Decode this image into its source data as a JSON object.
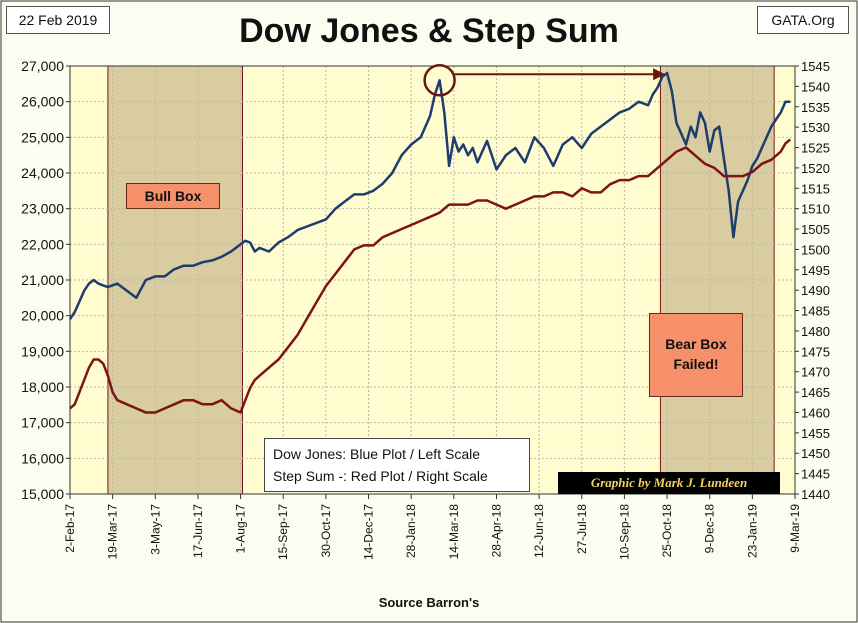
{
  "header": {
    "date": "22 Feb 2019",
    "source": "GATA.Org",
    "title": "Dow Jones & Step Sum"
  },
  "legend": {
    "line1": "Dow Jones: Blue Plot / Left Scale",
    "line2": "Step Sum -: Red Plot / Right Scale"
  },
  "credit": "Graphic by Mark J. Lundeen",
  "callouts": {
    "bull": "Bull Box",
    "bear_line1": "Bear Box",
    "bear_line2": "Failed!"
  },
  "colors": {
    "plot_bg": "#fffccf",
    "box_fill": "#d8cca0",
    "dow": "#1f3c6e",
    "step": "#7b1414",
    "grid": "#b9b9a8"
  },
  "chart_data": {
    "type": "line",
    "xlabel": "Source Barron's",
    "x_tick_labels": [
      "2-Feb-17",
      "19-Mar-17",
      "3-May-17",
      "17-Jun-17",
      "1-Aug-17",
      "15-Sep-17",
      "30-Oct-17",
      "14-Dec-17",
      "28-Jan-18",
      "14-Mar-18",
      "28-Apr-18",
      "12-Jun-18",
      "27-Jul-18",
      "10-Sep-18",
      "25-Oct-18",
      "9-Dec-18",
      "23-Jan-19",
      "9-Mar-19"
    ],
    "x_range_days": [
      0,
      765
    ],
    "left_axis": {
      "label": "Dow Jones",
      "ylim": [
        15000,
        27000
      ],
      "ticks": [
        15000,
        16000,
        17000,
        18000,
        19000,
        20000,
        21000,
        22000,
        23000,
        24000,
        25000,
        26000,
        27000
      ]
    },
    "right_axis": {
      "label": "Step Sum",
      "ylim": [
        1440,
        1545
      ],
      "ticks": [
        1440,
        1445,
        1450,
        1455,
        1460,
        1465,
        1470,
        1475,
        1480,
        1485,
        1490,
        1495,
        1500,
        1505,
        1510,
        1515,
        1520,
        1525,
        1530,
        1535,
        1540,
        1545
      ]
    },
    "boxes": [
      {
        "name": "Bull Box",
        "x_days": [
          40,
          182
        ]
      },
      {
        "name": "Bear Box",
        "x_days": [
          623,
          743
        ]
      }
    ],
    "series": [
      {
        "name": "Dow Jones",
        "axis": "left",
        "x_days": [
          0,
          5,
          10,
          15,
          20,
          25,
          30,
          35,
          40,
          50,
          60,
          70,
          80,
          90,
          100,
          110,
          120,
          130,
          140,
          150,
          160,
          170,
          180,
          185,
          190,
          195,
          200,
          210,
          220,
          230,
          240,
          250,
          260,
          270,
          280,
          290,
          300,
          310,
          320,
          330,
          340,
          350,
          360,
          370,
          375,
          380,
          385,
          390,
          395,
          400,
          405,
          410,
          415,
          420,
          425,
          430,
          440,
          450,
          460,
          470,
          480,
          490,
          500,
          510,
          520,
          530,
          540,
          550,
          560,
          570,
          580,
          590,
          600,
          610,
          615,
          620,
          625,
          630,
          635,
          640,
          645,
          650,
          655,
          660,
          665,
          670,
          675,
          680,
          685,
          690,
          695,
          700,
          705,
          710,
          715,
          720,
          725,
          730,
          735,
          740,
          745,
          750,
          755,
          760
        ],
        "values": [
          19900,
          20100,
          20400,
          20700,
          20900,
          21000,
          20900,
          20850,
          20800,
          20900,
          20700,
          20500,
          21000,
          21100,
          21100,
          21300,
          21400,
          21400,
          21500,
          21550,
          21650,
          21800,
          22000,
          22100,
          22050,
          21800,
          21900,
          21800,
          22050,
          22200,
          22400,
          22500,
          22600,
          22700,
          23000,
          23200,
          23400,
          23400,
          23500,
          23700,
          24000,
          24500,
          24800,
          25000,
          25300,
          25600,
          26200,
          26600,
          25700,
          24200,
          25000,
          24600,
          24800,
          24500,
          24700,
          24300,
          24900,
          24100,
          24500,
          24700,
          24300,
          25000,
          24700,
          24200,
          24800,
          25000,
          24700,
          25100,
          25300,
          25500,
          25700,
          25800,
          26000,
          25900,
          26200,
          26400,
          26700,
          26800,
          26300,
          25400,
          25100,
          24800,
          25300,
          25000,
          25700,
          25400,
          24600,
          25200,
          25300,
          24400,
          23500,
          22200,
          23200,
          23500,
          23800,
          24200,
          24400,
          24700,
          25000,
          25300,
          25500,
          25700,
          26000,
          26000
        ]
      },
      {
        "name": "Step Sum",
        "axis": "right",
        "x_days": [
          0,
          5,
          10,
          15,
          20,
          25,
          30,
          35,
          40,
          45,
          50,
          60,
          70,
          80,
          90,
          100,
          110,
          120,
          130,
          140,
          150,
          160,
          170,
          180,
          185,
          190,
          195,
          200,
          210,
          220,
          230,
          240,
          250,
          260,
          270,
          280,
          290,
          300,
          310,
          320,
          330,
          340,
          350,
          360,
          370,
          380,
          390,
          400,
          410,
          420,
          430,
          440,
          450,
          460,
          470,
          480,
          490,
          500,
          510,
          520,
          530,
          540,
          550,
          560,
          570,
          580,
          590,
          600,
          610,
          620,
          630,
          640,
          650,
          660,
          670,
          680,
          690,
          700,
          710,
          720,
          730,
          740,
          750,
          755,
          760
        ],
        "values": [
          1461,
          1462,
          1465,
          1468,
          1471,
          1473,
          1473,
          1472,
          1469,
          1465,
          1463,
          1462,
          1461,
          1460,
          1460,
          1461,
          1462,
          1463,
          1463,
          1462,
          1462,
          1463,
          1461,
          1460,
          1463,
          1466,
          1468,
          1469,
          1471,
          1473,
          1476,
          1479,
          1483,
          1487,
          1491,
          1494,
          1497,
          1500,
          1501,
          1501,
          1503,
          1504,
          1505,
          1506,
          1507,
          1508,
          1509,
          1511,
          1511,
          1511,
          1512,
          1512,
          1511,
          1510,
          1511,
          1512,
          1513,
          1513,
          1514,
          1514,
          1513,
          1515,
          1514,
          1514,
          1516,
          1517,
          1517,
          1518,
          1518,
          1520,
          1522,
          1524,
          1525,
          1523,
          1521,
          1520,
          1518,
          1518,
          1518,
          1519,
          1521,
          1522,
          1524,
          1526,
          1527
        ]
      }
    ]
  }
}
